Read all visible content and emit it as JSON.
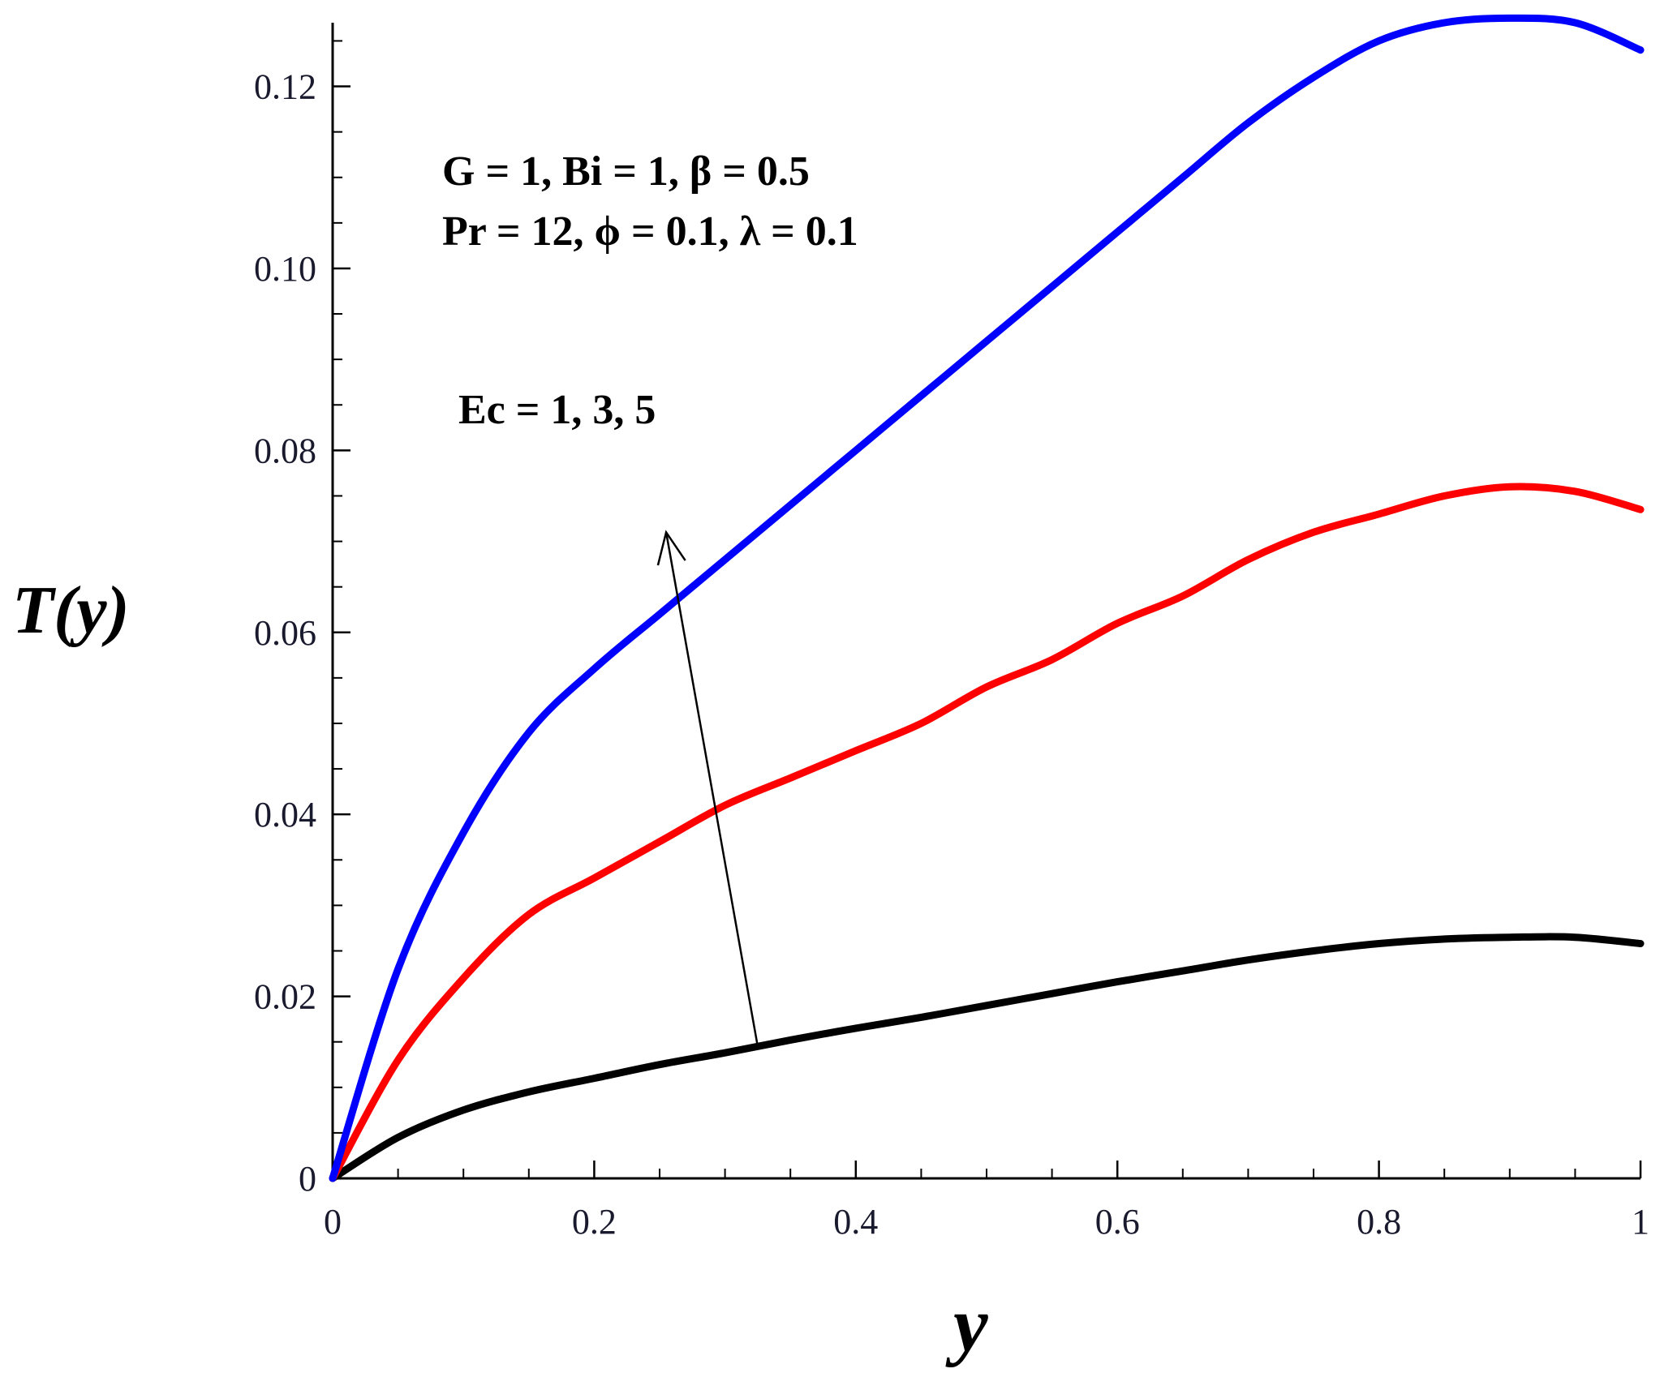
{
  "chart_data": {
    "type": "line",
    "xlabel": "y",
    "ylabel": "T(y)",
    "xlim": [
      0,
      1
    ],
    "ylim": [
      0,
      0.127
    ],
    "x_ticks": [
      0,
      0.2,
      0.4,
      0.6,
      0.8,
      1
    ],
    "x_tick_labels": [
      "0",
      "0.2",
      "0.4",
      "0.6",
      "0.8",
      "1"
    ],
    "y_ticks": [
      0,
      0.02,
      0.04,
      0.06,
      0.08,
      0.1,
      0.12
    ],
    "y_tick_labels": [
      "0",
      "0.02",
      "0.04",
      "0.06",
      "0.08",
      "0.10",
      "0.12"
    ],
    "grid": false,
    "x": [
      0,
      0.05,
      0.1,
      0.15,
      0.2,
      0.25,
      0.3,
      0.35,
      0.4,
      0.45,
      0.5,
      0.55,
      0.6,
      0.65,
      0.7,
      0.75,
      0.8,
      0.85,
      0.9,
      0.95,
      1.0
    ],
    "series": [
      {
        "color": "#000000",
        "values": [
          0,
          0.0045,
          0.0075,
          0.0095,
          0.011,
          0.0125,
          0.0138,
          0.0152,
          0.0165,
          0.0177,
          0.019,
          0.0203,
          0.0216,
          0.0228,
          0.024,
          0.025,
          0.0258,
          0.0263,
          0.0265,
          0.0265,
          0.0258
        ]
      },
      {
        "color": "#ff0000",
        "values": [
          0,
          0.013,
          0.022,
          0.029,
          0.033,
          0.037,
          0.041,
          0.044,
          0.047,
          0.05,
          0.054,
          0.057,
          0.061,
          0.064,
          0.068,
          0.071,
          0.073,
          0.075,
          0.076,
          0.0755,
          0.0735
        ]
      },
      {
        "color": "#0000ff",
        "values": [
          0,
          0.023,
          0.038,
          0.049,
          0.056,
          0.062,
          0.068,
          0.074,
          0.08,
          0.086,
          0.092,
          0.098,
          0.104,
          0.11,
          0.116,
          0.121,
          0.125,
          0.127,
          0.1275,
          0.127,
          0.124
        ]
      }
    ],
    "annotations": {
      "params_line1": "G = 1, Bi = 1, β = 0.5",
      "params_line2": "Pr = 12, ϕ = 0.1, λ = 0.1",
      "arrow_label": "Ec = 1, 3, 5",
      "arrow": {
        "from": [
          0.325,
          0.0145
        ],
        "to": [
          0.255,
          0.071
        ]
      }
    }
  }
}
